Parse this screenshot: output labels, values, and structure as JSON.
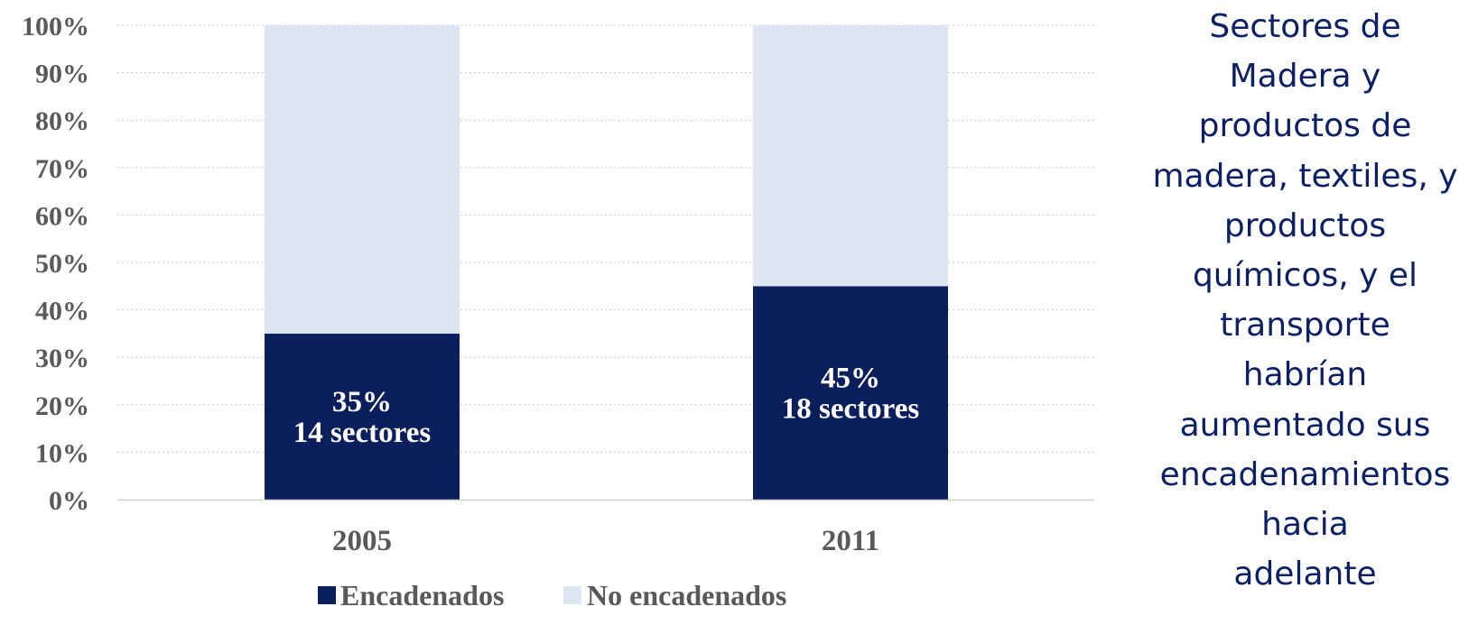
{
  "colors": {
    "encadenados": "#0b1f5c",
    "no_encadenados": "#dce6f2",
    "gridline": "#c8c8c8",
    "axis": "#d0d0d0",
    "note_text": "#0c2066"
  },
  "chart_data": {
    "type": "bar",
    "stacked": true,
    "categories": [
      "2005",
      "2011"
    ],
    "series": [
      {
        "name": "Encadenados",
        "values": [
          35,
          45
        ],
        "labels": [
          [
            "35%",
            "14 sectores"
          ],
          [
            "45%",
            "18 sectores"
          ]
        ]
      },
      {
        "name": "No encadenados",
        "values": [
          65,
          55
        ]
      }
    ],
    "y_ticks": [
      "0%",
      "10%",
      "20%",
      "30%",
      "40%",
      "50%",
      "60%",
      "70%",
      "80%",
      "90%",
      "100%"
    ],
    "ylim": [
      0,
      100
    ],
    "grid": true,
    "legend_position": "bottom"
  },
  "side_note": {
    "lines": [
      "Sectores de",
      "Madera y",
      "productos de",
      "madera, textiles, y",
      "productos",
      "químicos, y el",
      "transporte",
      "habrían",
      "aumentado sus",
      "encadenamientos",
      "hacia",
      "adelante"
    ]
  }
}
